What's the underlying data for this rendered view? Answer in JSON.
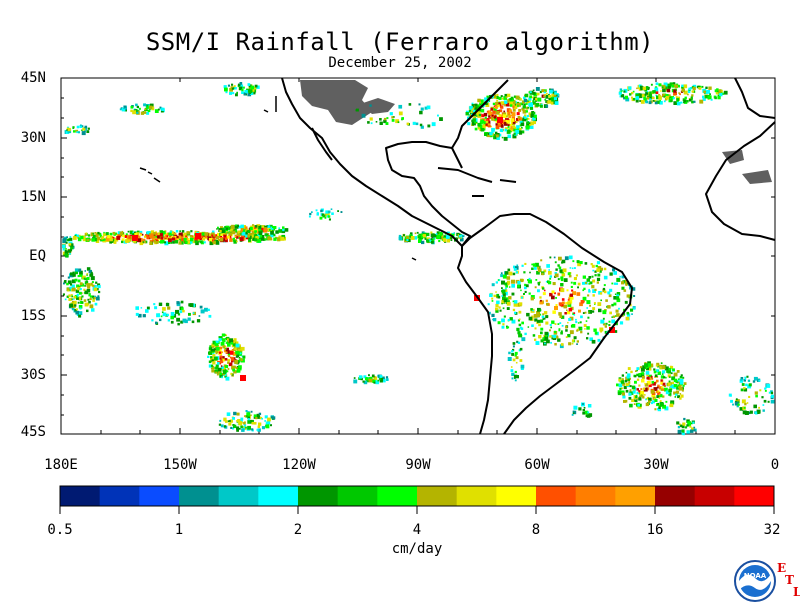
{
  "title": "SSM/I Rainfall (Ferraro algorithm)",
  "subtitle": "December 25, 2002",
  "lat_labels": [
    "45N",
    "30N",
    "15N",
    "EQ",
    "15S",
    "30S",
    "45S"
  ],
  "lon_labels": [
    "180E",
    "150W",
    "120W",
    "90W",
    "60W",
    "30W",
    "0"
  ],
  "colorbar": {
    "tick_labels": [
      "0.5",
      "1",
      "2",
      "4",
      "8",
      "16",
      "32"
    ],
    "units": "cm/day",
    "colors": [
      "#001a72",
      "#0033b8",
      "#0a4cff",
      "#009090",
      "#00c8c8",
      "#00ffff",
      "#009600",
      "#00c800",
      "#00ff00",
      "#b4b400",
      "#e0e000",
      "#ffff00",
      "#ff5000",
      "#ff7e00",
      "#ffa000",
      "#960000",
      "#c80000",
      "#ff0000"
    ]
  },
  "colors": {
    "no_data": "#606060",
    "coast": "#000000"
  },
  "logo": {
    "text": "NOAA",
    "etl_top": "E",
    "etl_mid": "T",
    "etl_bot": "L"
  }
}
